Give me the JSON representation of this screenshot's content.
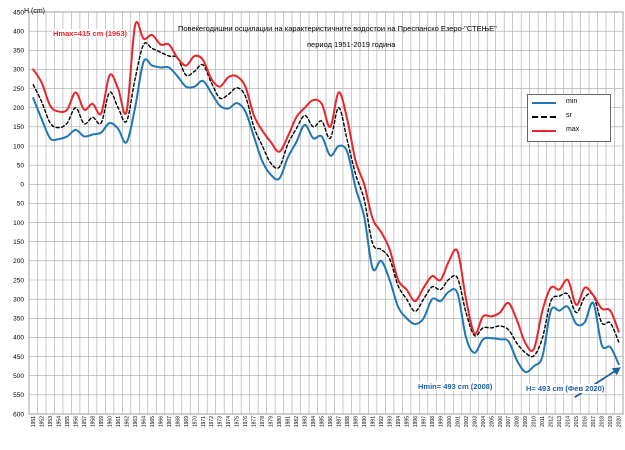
{
  "chart_data": {
    "type": "line",
    "title_lines": [
      "Повеќегодишни осцилации на карактеристичните водостои на Преспанско Езеро-\"СТЕЊЕ\"",
      "период 1951-2019 година"
    ],
    "ylabel": "H (cm)",
    "ylim": [
      -600,
      450
    ],
    "y_ticks": [
      {
        "v": 450,
        "label": "450"
      },
      {
        "v": 400,
        "label": "400"
      },
      {
        "v": 350,
        "label": "350"
      },
      {
        "v": 300,
        "label": "300"
      },
      {
        "v": 250,
        "label": "250"
      },
      {
        "v": 200,
        "label": "200"
      },
      {
        "v": 150,
        "label": "150"
      },
      {
        "v": 100,
        "label": "100"
      },
      {
        "v": 50,
        "label": "50"
      },
      {
        "v": 0,
        "label": "0"
      },
      {
        "v": -50,
        "label": "50"
      },
      {
        "v": -100,
        "label": "100"
      },
      {
        "v": -150,
        "label": "150"
      },
      {
        "v": -200,
        "label": "200"
      },
      {
        "v": -250,
        "label": "250"
      },
      {
        "v": -300,
        "label": "300"
      },
      {
        "v": -350,
        "label": "350"
      },
      {
        "v": -400,
        "label": "400"
      },
      {
        "v": -450,
        "label": "450"
      },
      {
        "v": -500,
        "label": "500"
      },
      {
        "v": -550,
        "label": "550"
      },
      {
        "v": -600,
        "label": "600"
      }
    ],
    "categories": [
      "1951",
      "1952",
      "1953",
      "1954",
      "1955",
      "1956",
      "1957",
      "1958",
      "1959",
      "1960",
      "1961",
      "1962",
      "1963",
      "1964",
      "1965",
      "1966",
      "1967",
      "1968",
      "1969",
      "1970",
      "1971",
      "1972",
      "1973",
      "1974",
      "1975",
      "1976",
      "1977",
      "1978",
      "1979",
      "1980",
      "1981",
      "1982",
      "1983",
      "1984",
      "1985",
      "1986",
      "1987",
      "1988",
      "1989",
      "1990",
      "1991",
      "1992",
      "1993",
      "1994",
      "1995",
      "1996",
      "1997",
      "1998",
      "1999",
      "2000",
      "2001",
      "2002",
      "2003",
      "2004",
      "2005",
      "2006",
      "2007",
      "2008",
      "2009",
      "2010",
      "2011",
      "2012",
      "2013",
      "2014",
      "2015",
      "2016",
      "2017",
      "2018",
      "2019",
      "2020"
    ],
    "grid": true,
    "legend_position": "right",
    "series": [
      {
        "name": "min",
        "color": "#1f77b4",
        "dash": "solid",
        "values": [
          225,
          170,
          120,
          118,
          125,
          142,
          125,
          130,
          135,
          160,
          145,
          110,
          200,
          320,
          310,
          305,
          305,
          282,
          255,
          255,
          270,
          238,
          205,
          198,
          212,
          190,
          125,
          60,
          25,
          15,
          70,
          110,
          155,
          120,
          125,
          75,
          100,
          85,
          -10,
          -85,
          -220,
          -200,
          -250,
          -320,
          -350,
          -365,
          -350,
          -300,
          -305,
          -280,
          -285,
          -400,
          -440,
          -405,
          -402,
          -405,
          -410,
          -460,
          -490,
          -475,
          -450,
          -330,
          -330,
          -320,
          -365,
          -360,
          -310,
          -420,
          -425,
          -470
        ]
      },
      {
        "name": "sr",
        "color": "#000000",
        "dash": "dashed",
        "values": [
          260,
          215,
          160,
          148,
          160,
          200,
          158,
          175,
          160,
          240,
          200,
          165,
          275,
          365,
          355,
          345,
          335,
          330,
          285,
          295,
          312,
          265,
          225,
          235,
          252,
          230,
          150,
          100,
          55,
          45,
          105,
          145,
          180,
          150,
          165,
          120,
          200,
          115,
          25,
          -40,
          -155,
          -170,
          -195,
          -265,
          -300,
          -332,
          -300,
          -268,
          -275,
          -248,
          -245,
          -335,
          -395,
          -375,
          -375,
          -370,
          -380,
          -415,
          -440,
          -448,
          -402,
          -305,
          -292,
          -287,
          -335,
          -295,
          -290,
          -362,
          -362,
          -412
        ]
      },
      {
        "name": "max",
        "color": "#e8262a",
        "dash": "solid",
        "values": [
          300,
          265,
          205,
          190,
          195,
          240,
          195,
          210,
          185,
          285,
          250,
          190,
          415,
          380,
          390,
          365,
          365,
          330,
          310,
          335,
          325,
          275,
          255,
          280,
          282,
          255,
          180,
          140,
          110,
          85,
          125,
          175,
          200,
          220,
          210,
          150,
          240,
          170,
          60,
          0,
          -90,
          -125,
          -170,
          -250,
          -275,
          -305,
          -270,
          -240,
          -250,
          -200,
          -175,
          -300,
          -390,
          -345,
          -345,
          -335,
          -310,
          -355,
          -415,
          -430,
          -330,
          -270,
          -275,
          -250,
          -315,
          -270,
          -290,
          -325,
          -330,
          -385
        ]
      }
    ],
    "annotations": {
      "hmax": "Hmax=415 cm (1963)",
      "hmin": "Hmin= 493 cm (2008)",
      "h_now": "H= 493 cm (Фев 2020)"
    },
    "colors": {
      "annotation_red": "#e8262a",
      "annotation_blue": "#1f5fa8",
      "grid": "#a6a6a6"
    }
  }
}
